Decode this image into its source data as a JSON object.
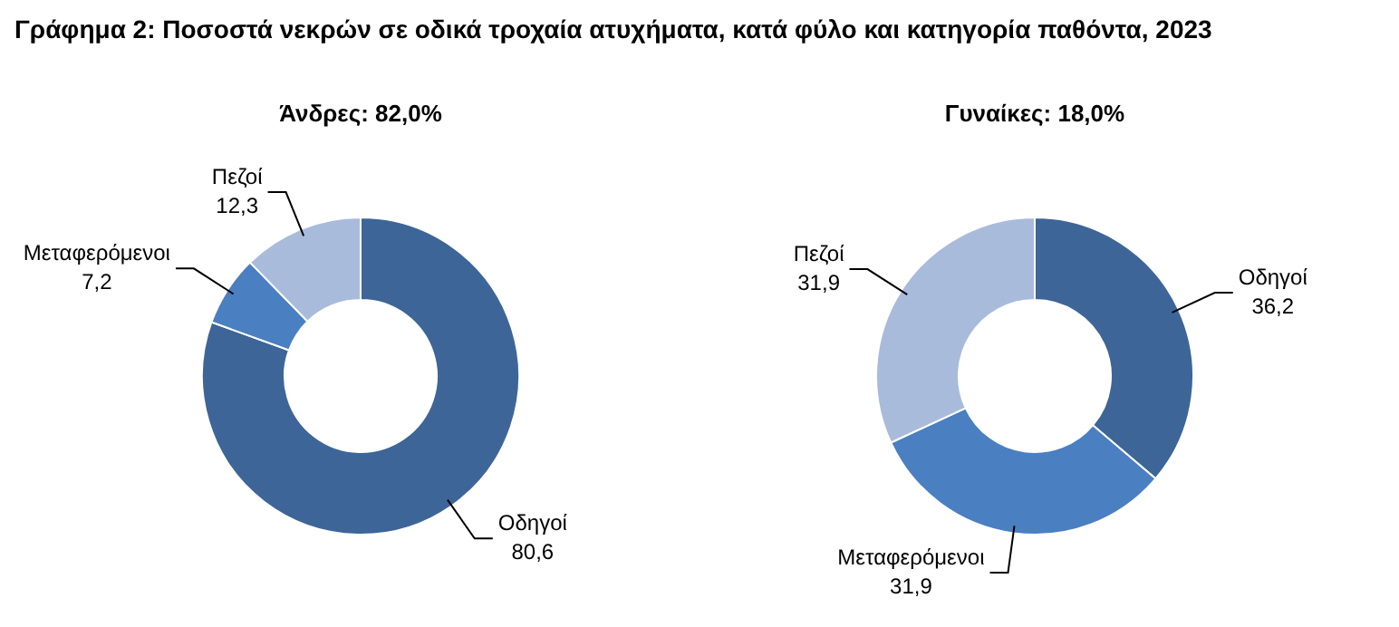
{
  "chart_data": [
    {
      "type": "donut",
      "title": "Γράφημα 2: Ποσοστά νεκρών σε οδικά τροχαία ατυχήματα, κατά φύλο και κατηγορία παθόντα, 2023",
      "subtitle": "Άνδρες: 82,0%",
      "categories": [
        "Οδηγοί",
        "Μεταφερόμενοι",
        "Πεζοί"
      ],
      "values": [
        80.6,
        7.2,
        12.3
      ],
      "value_labels": [
        "80,6",
        "7,2",
        "12,3"
      ],
      "colors": [
        "#3d6598",
        "#4a7fc1",
        "#a9bbdb"
      ],
      "legend": false
    },
    {
      "type": "donut",
      "subtitle": "Γυναίκες: 18,0%",
      "categories": [
        "Οδηγοί",
        "Μεταφερόμενοι",
        "Πεζοί"
      ],
      "values": [
        36.2,
        31.9,
        31.9
      ],
      "value_labels": [
        "36,2",
        "31,9",
        "31,9"
      ],
      "colors": [
        "#3d6598",
        "#4a7fc1",
        "#a9bbdb"
      ],
      "legend": false
    }
  ]
}
